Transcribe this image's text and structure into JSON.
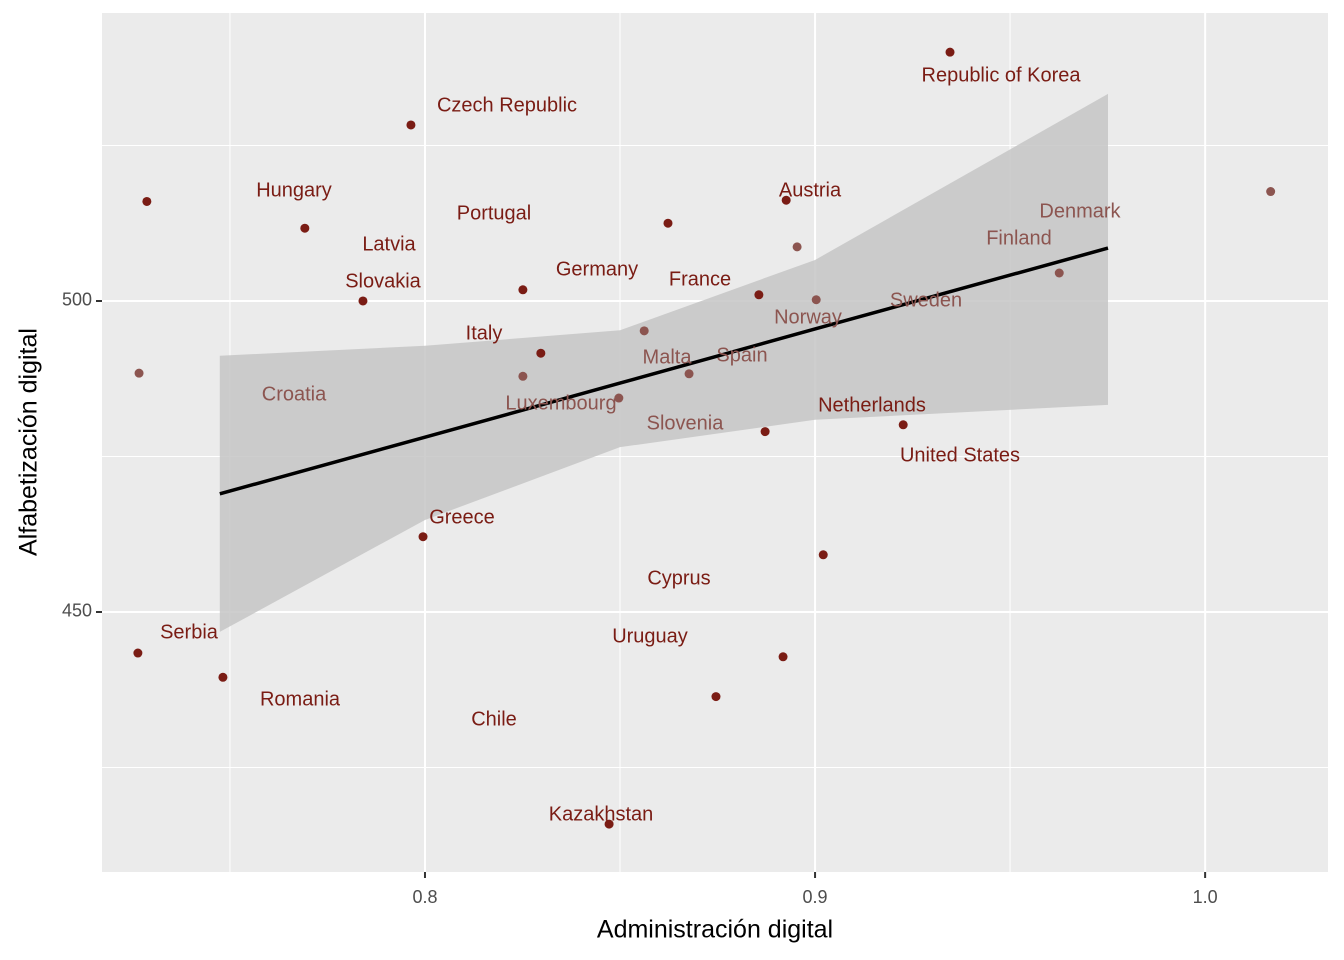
{
  "chart_data": {
    "type": "scatter",
    "x_label": "Administración digital",
    "y_label": "Alfabetización digital",
    "xlim": [
      0.7172,
      1.0315
    ],
    "ylim": [
      408.2,
      546.3
    ],
    "xticks": [
      0.8,
      0.9,
      {
        "value": 1,
        "label": "1.0"
      }
    ],
    "yticks": [
      450,
      500
    ],
    "xminor": [
      0.75,
      0.85,
      0.95
    ],
    "yminor": [
      425,
      475,
      525
    ],
    "grid": true,
    "labels": [
      "Republic of Korea",
      "Czech Republic",
      "Denmark",
      "Hungary",
      "Austria",
      "Portugal",
      "Latvia",
      "Norway",
      "Finland",
      "Slovakia",
      "Germany",
      "France",
      "Sweden",
      "Malta",
      "Italy",
      "Croatia",
      "Slovenia",
      "Spain",
      "Luxembourg",
      "United States",
      "Netherlands",
      "Greece",
      "Cyprus",
      "Serbia",
      "Romania",
      "Uruguay",
      "Chile",
      "Kazakhstan"
    ],
    "x": [
      0.9346,
      0.7964,
      1.0168,
      0.7287,
      0.8926,
      0.8623,
      0.7692,
      0.8954,
      0.9626,
      0.7841,
      0.8251,
      0.8856,
      0.9003,
      0.8562,
      0.8297,
      0.7267,
      0.8251,
      0.8677,
      0.8497,
      0.9226,
      0.8872,
      0.7995,
      0.9021,
      0.7264,
      0.7482,
      0.8918,
      0.8746,
      0.8472
    ],
    "values": [
      540.0,
      528.3,
      517.6,
      516.0,
      516.2,
      512.5,
      511.7,
      508.7,
      504.5,
      500.0,
      501.8,
      501.0,
      500.2,
      495.2,
      491.6,
      488.4,
      487.9,
      488.3,
      484.4,
      480.1,
      479.0,
      462.1,
      459.2,
      443.4,
      439.5,
      442.8,
      436.4,
      415.9
    ],
    "colors": [
      "#7a1c14",
      "#7a1c14",
      "#8c5550",
      "#7a1c14",
      "#7a1c14",
      "#7a1c14",
      "#7a1c14",
      "#8c5550",
      "#8c5550",
      "#7a1c14",
      "#7a1c14",
      "#7a1c14",
      "#8c5550",
      "#8c5550",
      "#7a1c14",
      "#8c5550",
      "#8c5550",
      "#8c5550",
      "#8c5550",
      "#7a1c14",
      "#7a1c14",
      "#7a1c14",
      "#7a1c14",
      "#7a1c14",
      "#7a1c14",
      "#7a1c14",
      "#7a1c14",
      "#7a1c14"
    ],
    "smooth": {
      "color": "#000000",
      "band_color": "#c6c6c6",
      "x": [
        0.7474,
        0.8,
        0.85,
        0.9,
        0.9751
      ],
      "y": [
        469.0,
        478.1,
        486.8,
        495.5,
        508.5
      ],
      "ymin": [
        446.8,
        464.8,
        476.5,
        480.9,
        483.3
      ],
      "ymax": [
        491.2,
        492.8,
        495.3,
        506.6,
        533.3
      ]
    }
  }
}
